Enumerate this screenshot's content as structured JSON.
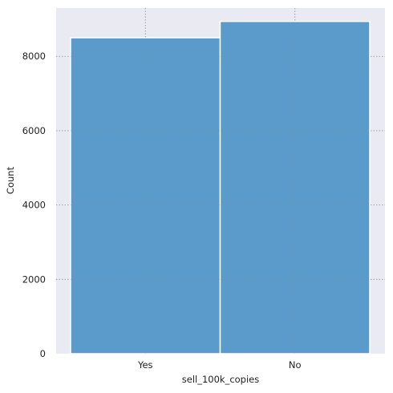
{
  "chart_data": {
    "type": "bar",
    "categories": [
      "Yes",
      "No"
    ],
    "values": [
      8500,
      8940
    ],
    "xlabel": "sell_100k_copies",
    "ylabel": "Count",
    "ylim": [
      0,
      9300
    ],
    "yticks": [
      0,
      2000,
      4000,
      6000,
      8000
    ],
    "grid": true,
    "legend": "none"
  },
  "colors": {
    "plot_background": "#eaeaf2",
    "bar_fill": "#5b9bcb",
    "bar_edge": "#ffffff",
    "grid": "#8a8a8a"
  }
}
